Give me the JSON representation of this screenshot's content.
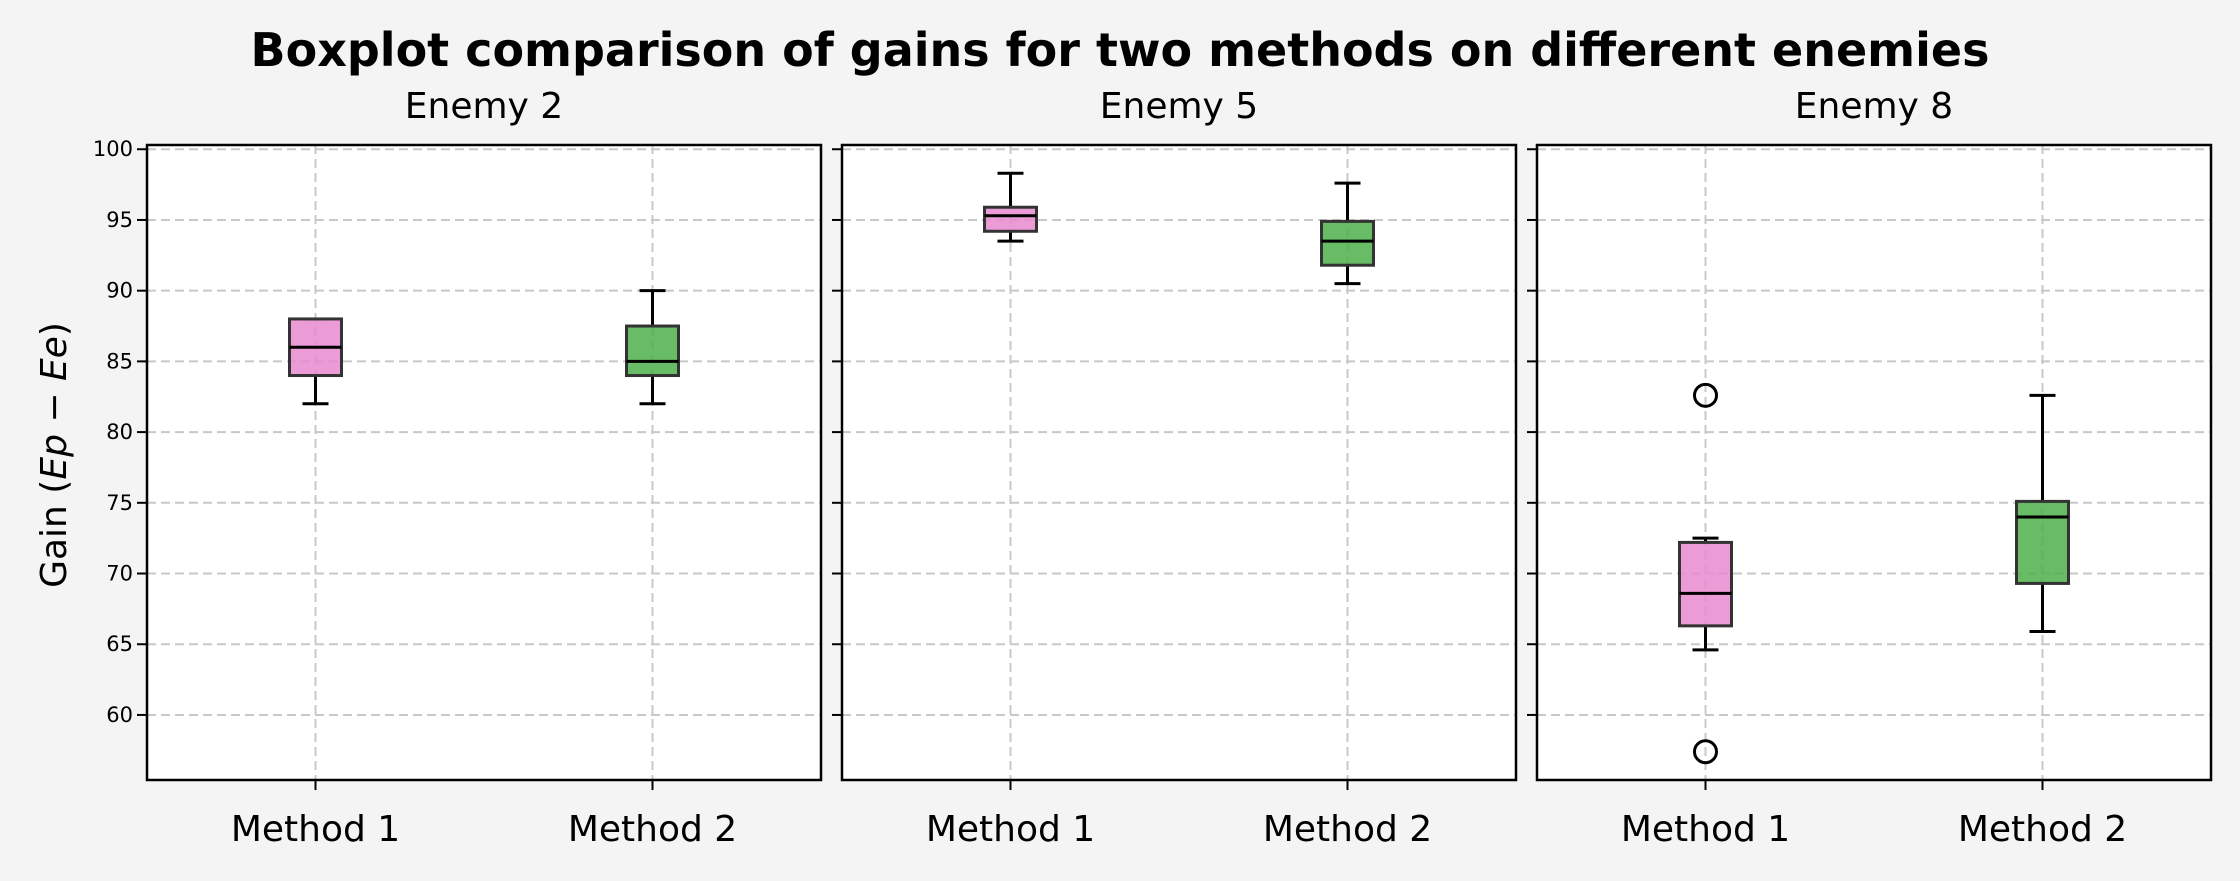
{
  "chart_data": {
    "type": "boxplot",
    "title": "Boxplot comparison of gains for two methods on different enemies",
    "ylabel": "Gain (Ep − Ee)",
    "ylabel_plain": "Gain (",
    "ylabel_math": "Ep − Ee",
    "ylabel_close": ")",
    "ylim": [
      55.4,
      100.3
    ],
    "yticks": [
      60,
      65,
      70,
      75,
      80,
      85,
      90,
      95,
      100
    ],
    "grid": true,
    "categories": [
      "Method 1",
      "Method 2"
    ],
    "colors": {
      "Method 1": "#e88bcf",
      "Method 2": "#4db04a"
    },
    "panels": [
      {
        "title": "Enemy 2",
        "boxes": [
          {
            "method": "Method 1",
            "whisker_low": 82.0,
            "q1": 84.0,
            "median": 86.0,
            "q3": 88.0,
            "whisker_high": 88.0,
            "outliers": []
          },
          {
            "method": "Method 2",
            "whisker_low": 82.0,
            "q1": 84.0,
            "median": 85.0,
            "q3": 87.5,
            "whisker_high": 90.0,
            "outliers": []
          }
        ]
      },
      {
        "title": "Enemy 5",
        "boxes": [
          {
            "method": "Method 1",
            "whisker_low": 93.5,
            "q1": 94.2,
            "median": 95.3,
            "q3": 95.9,
            "whisker_high": 98.3,
            "outliers": []
          },
          {
            "method": "Method 2",
            "whisker_low": 90.5,
            "q1": 91.8,
            "median": 93.5,
            "q3": 94.9,
            "whisker_high": 97.6,
            "outliers": []
          }
        ]
      },
      {
        "title": "Enemy 8",
        "boxes": [
          {
            "method": "Method 1",
            "whisker_low": 64.6,
            "q1": 66.3,
            "median": 68.6,
            "q3": 72.2,
            "whisker_high": 72.5,
            "outliers": [
              82.6,
              57.4
            ]
          },
          {
            "method": "Method 2",
            "whisker_low": 65.9,
            "q1": 69.3,
            "median": 74.0,
            "q3": 75.1,
            "whisker_high": 82.6,
            "outliers": []
          }
        ]
      }
    ]
  }
}
